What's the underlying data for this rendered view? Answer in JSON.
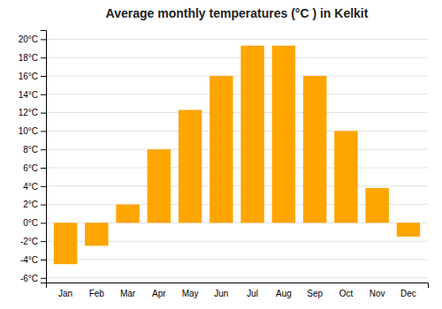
{
  "chart_data": {
    "type": "bar",
    "title": "Average monthly temperatures (°C ) in Kelkit",
    "categories": [
      "Jan",
      "Feb",
      "Mar",
      "Apr",
      "May",
      "Jun",
      "Jul",
      "Aug",
      "Sep",
      "Oct",
      "Nov",
      "Dec"
    ],
    "values": [
      -4.5,
      -2.5,
      2.0,
      8.0,
      12.3,
      16.0,
      19.3,
      19.3,
      16.0,
      10.0,
      3.8,
      -1.5
    ],
    "color": "#FFA500",
    "ylim": [
      -6.5,
      21
    ],
    "yticks": [
      {
        "value": -6,
        "label": "-6°C"
      },
      {
        "value": -4,
        "label": "-4°C"
      },
      {
        "value": -2,
        "label": "-2°C"
      },
      {
        "value": 0,
        "label": "0°C"
      },
      {
        "value": 2,
        "label": "2°C"
      },
      {
        "value": 4,
        "label": "4°C"
      },
      {
        "value": 6,
        "label": "6°C"
      },
      {
        "value": 8,
        "label": "8°C"
      },
      {
        "value": 10,
        "label": "10°C"
      },
      {
        "value": 12,
        "label": "12°C"
      },
      {
        "value": 14,
        "label": "14°C"
      },
      {
        "value": 16,
        "label": "16°C"
      },
      {
        "value": 18,
        "label": "18°C"
      },
      {
        "value": 20,
        "label": "20°C"
      }
    ],
    "grid": true
  }
}
